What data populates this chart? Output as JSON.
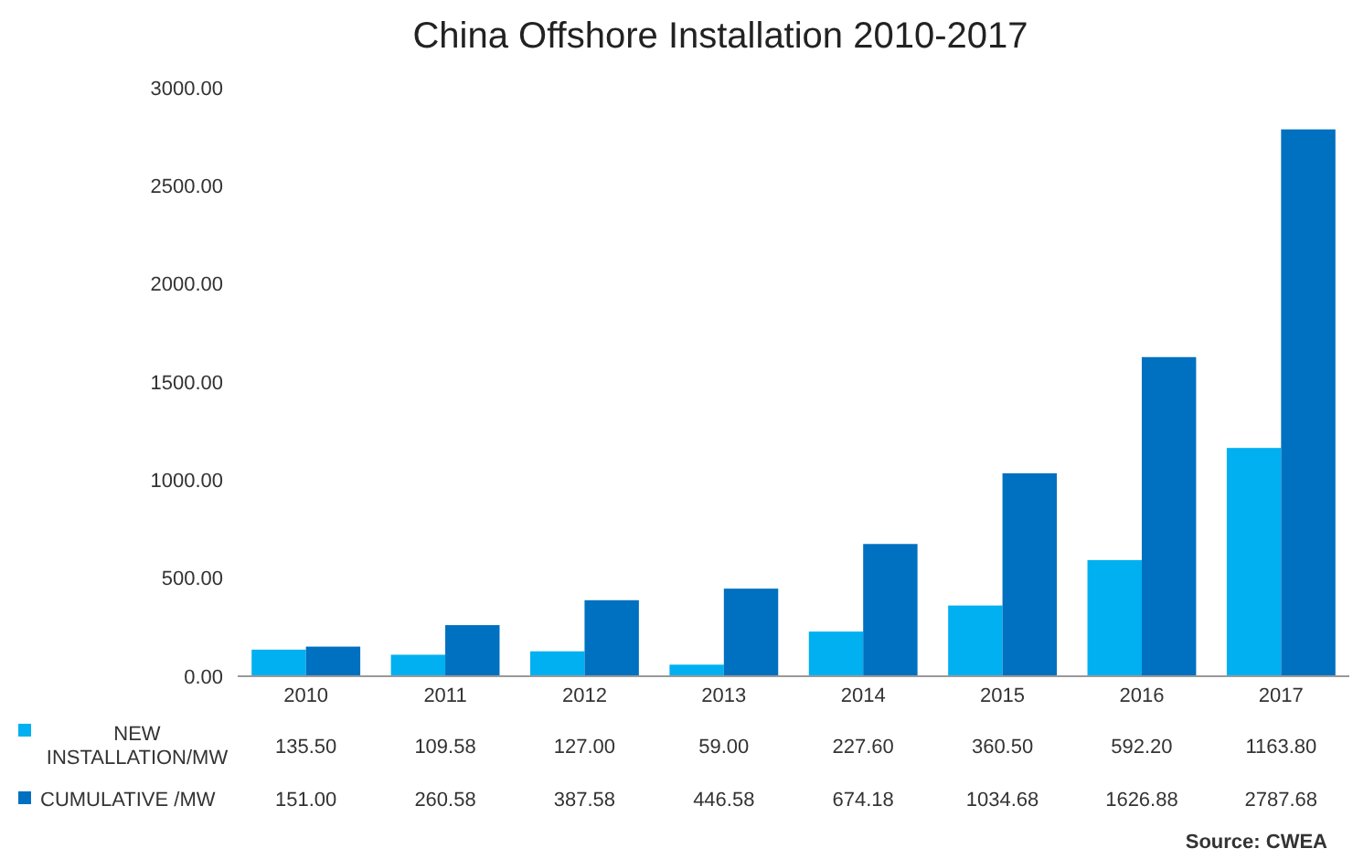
{
  "chart_data": {
    "type": "bar",
    "title": "China Offshore Installation 2010-2017",
    "categories": [
      "2010",
      "2011",
      "2012",
      "2013",
      "2014",
      "2015",
      "2016",
      "2017"
    ],
    "series": [
      {
        "name": "NEW INSTALLATION/MW",
        "color": "#00b0f0",
        "values": [
          135.5,
          109.58,
          127,
          59,
          227.6,
          360.5,
          592.2,
          1163.8
        ],
        "value_labels": [
          "135.50",
          "109.58",
          "127.00",
          "59.00",
          "227.60",
          "360.50",
          "592.20",
          "1163.80"
        ]
      },
      {
        "name": "CUMULATIVE /MW",
        "color": "#0070c0",
        "values": [
          151,
          260.58,
          387.58,
          446.58,
          674.18,
          1034.68,
          1626.88,
          2787.68
        ],
        "value_labels": [
          "151.00",
          "260.58",
          "387.58",
          "446.58",
          "674.18",
          "1034.68",
          "1626.88",
          "2787.68"
        ]
      }
    ],
    "ylim": [
      0,
      3000
    ],
    "yticks": [
      {
        "value": 0,
        "label": "0.00"
      },
      {
        "value": 500,
        "label": "500.00"
      },
      {
        "value": 1000,
        "label": "1000.00"
      },
      {
        "value": 1500,
        "label": "1500.00"
      },
      {
        "value": 2000,
        "label": "2000.00"
      },
      {
        "value": 2500,
        "label": "2500.00"
      },
      {
        "value": 3000,
        "label": "3000.00"
      }
    ],
    "grid": false,
    "legend": "bottom",
    "annotations": [
      "Source: CWEA"
    ]
  }
}
